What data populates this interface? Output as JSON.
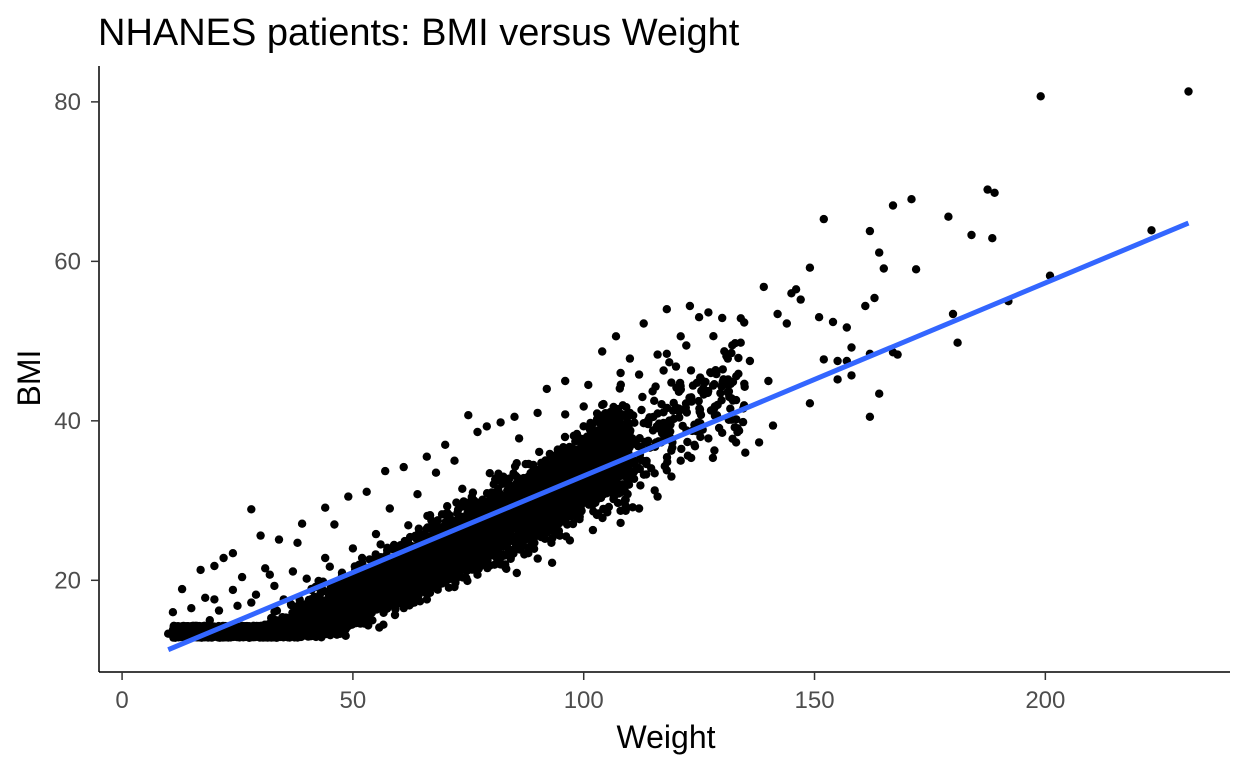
{
  "chart_data": {
    "type": "scatter",
    "title": "NHANES patients: BMI versus Weight",
    "xlabel": "Weight",
    "ylabel": "BMI",
    "xlim": [
      -5,
      240
    ],
    "ylim": [
      8.5,
      84.5
    ],
    "x_ticks": [
      0,
      50,
      100,
      150,
      200
    ],
    "y_ticks": [
      20,
      40,
      60,
      80
    ],
    "grid": false,
    "legend": "none",
    "point_color": "#000000",
    "trend_color": "#3366ff",
    "trendline": {
      "method": "linear",
      "x": [
        10,
        231
      ],
      "y": [
        11.3,
        64.8
      ]
    },
    "points": [
      [
        199,
        80.7
      ],
      [
        231,
        81.3
      ],
      [
        187.5,
        69
      ],
      [
        189,
        68.6
      ],
      [
        171,
        67.8
      ],
      [
        167,
        67
      ],
      [
        179,
        65.6
      ],
      [
        152,
        65.3
      ],
      [
        162,
        63.8
      ],
      [
        184,
        63.3
      ],
      [
        188.5,
        62.9
      ],
      [
        223,
        63.9
      ],
      [
        164,
        61.1
      ],
      [
        165,
        59.1
      ],
      [
        172,
        59
      ],
      [
        149,
        59.2
      ],
      [
        201,
        58.2
      ],
      [
        192,
        55
      ],
      [
        146,
        56.5
      ],
      [
        139,
        56.8
      ],
      [
        145,
        56
      ],
      [
        147,
        55.2
      ],
      [
        180,
        53.4
      ],
      [
        157,
        51.7
      ],
      [
        161,
        54.4
      ],
      [
        163,
        55.4
      ],
      [
        154,
        52.4
      ],
      [
        151,
        53
      ],
      [
        144,
        52.2
      ],
      [
        142,
        53.4
      ],
      [
        181,
        49.8
      ],
      [
        158,
        49.2
      ],
      [
        162,
        48.4
      ],
      [
        167,
        48.6
      ],
      [
        168,
        48.3
      ],
      [
        155,
        47.5
      ],
      [
        157,
        47.5
      ],
      [
        152,
        47.7
      ],
      [
        158,
        45.7
      ],
      [
        155,
        45.2
      ],
      [
        164,
        43.4
      ],
      [
        162,
        40.5
      ],
      [
        140,
        45
      ],
      [
        131,
        44.5
      ],
      [
        136,
        47.5
      ],
      [
        149,
        42.2
      ],
      [
        123,
        54.4
      ],
      [
        127,
        53.6
      ],
      [
        118,
        54
      ],
      [
        125,
        53
      ],
      [
        130,
        52.9
      ],
      [
        113,
        52.2
      ],
      [
        121,
        50.6
      ],
      [
        107,
        50.6
      ],
      [
        118,
        48.4
      ],
      [
        134,
        49.8
      ],
      [
        132,
        48.5
      ],
      [
        104,
        48.7
      ],
      [
        110,
        47.8
      ],
      [
        101,
        44.5
      ],
      [
        96,
        45
      ],
      [
        92,
        44
      ],
      [
        85,
        40.5
      ],
      [
        90,
        41
      ],
      [
        79,
        39.3
      ],
      [
        77,
        38.6
      ],
      [
        75,
        40.7
      ],
      [
        70,
        37
      ],
      [
        66,
        35.5
      ],
      [
        61,
        34.2
      ],
      [
        57,
        33.7
      ],
      [
        53,
        31.1
      ],
      [
        49,
        30.5
      ],
      [
        44,
        29.1
      ],
      [
        28,
        28.9
      ],
      [
        39,
        27.1
      ],
      [
        34,
        25.1
      ],
      [
        30,
        25.6
      ],
      [
        24,
        23.4
      ],
      [
        22,
        22.8
      ],
      [
        20,
        21.8
      ],
      [
        17,
        21.3
      ],
      [
        13,
        18.9
      ],
      [
        11,
        16
      ],
      [
        10,
        13.3
      ],
      [
        12,
        13.8
      ],
      [
        14,
        13.5
      ],
      [
        16,
        13.2
      ],
      [
        18,
        13.4
      ],
      [
        22,
        13.2
      ],
      [
        26,
        13.5
      ],
      [
        30,
        13
      ],
      [
        36,
        14.5
      ],
      [
        42,
        15.8
      ],
      [
        48,
        16.5
      ],
      [
        54,
        17.5
      ],
      [
        60,
        19
      ],
      [
        66,
        18.3
      ],
      [
        72,
        20.5
      ],
      [
        77,
        20.7
      ],
      [
        83,
        22
      ],
      [
        88,
        23.4
      ],
      [
        93,
        24.7
      ],
      [
        97,
        25
      ],
      [
        102,
        26.3
      ],
      [
        108,
        27.2
      ],
      [
        112,
        29
      ],
      [
        116,
        30.5
      ],
      [
        119,
        33
      ],
      [
        121,
        35
      ],
      [
        124,
        37
      ],
      [
        127,
        37.8
      ],
      [
        130,
        38.5
      ],
      [
        133,
        37.3
      ],
      [
        135,
        36
      ],
      [
        138,
        37.3
      ],
      [
        141,
        39.4
      ],
      [
        126,
        43.3
      ],
      [
        129,
        42
      ],
      [
        133,
        42.6
      ],
      [
        120,
        46.8
      ],
      [
        116,
        48.3
      ],
      [
        112,
        45.8
      ],
      [
        108,
        46
      ],
      [
        96,
        40.8
      ],
      [
        100,
        41.8
      ],
      [
        104,
        42
      ],
      [
        110,
        41
      ],
      [
        114,
        37.5
      ],
      [
        118,
        33.8
      ],
      [
        82,
        39.8
      ],
      [
        86,
        37.8
      ],
      [
        68,
        33.5
      ],
      [
        72,
        35
      ],
      [
        64,
        30.8
      ],
      [
        58,
        29
      ],
      [
        46,
        27
      ],
      [
        38,
        24.7
      ],
      [
        31,
        21.5
      ],
      [
        26,
        20.4
      ],
      [
        19,
        15
      ],
      [
        15,
        14.2
      ],
      [
        20,
        17.6
      ],
      [
        24,
        18.8
      ],
      [
        28,
        17.2
      ],
      [
        33,
        19.3
      ],
      [
        40,
        20.2
      ],
      [
        44,
        22.8
      ],
      [
        50,
        24
      ],
      [
        55,
        25.8
      ],
      [
        62,
        26.9
      ],
      [
        70,
        28.3
      ],
      [
        76,
        31
      ],
      [
        82,
        32.6
      ],
      [
        89,
        34.3
      ],
      [
        95,
        35.8
      ],
      [
        101,
        36.9
      ],
      [
        107,
        38.2
      ],
      [
        113,
        39.7
      ],
      [
        15,
        16.5
      ],
      [
        18,
        17.8
      ],
      [
        21,
        16.2
      ],
      [
        25,
        16.8
      ],
      [
        29,
        18.2
      ],
      [
        35,
        17.6
      ],
      [
        41,
        18.8
      ],
      [
        47,
        19.9
      ],
      [
        53,
        21.4
      ],
      [
        59,
        22.6
      ],
      [
        65,
        23.1
      ],
      [
        71,
        24.8
      ],
      [
        78,
        26.5
      ],
      [
        84,
        27.9
      ],
      [
        91,
        29.6
      ],
      [
        98,
        31
      ],
      [
        104,
        32.9
      ],
      [
        110,
        33.7
      ],
      [
        67,
        27.5
      ],
      [
        74,
        29.9
      ],
      [
        80,
        30.8
      ],
      [
        86,
        31.2
      ],
      [
        92,
        33.2
      ],
      [
        99,
        34.9
      ],
      [
        105,
        35.4
      ],
      [
        56,
        24.5
      ],
      [
        52,
        22.8
      ],
      [
        45,
        21.7
      ],
      [
        37,
        21.1
      ],
      [
        32,
        20.7
      ]
    ]
  }
}
